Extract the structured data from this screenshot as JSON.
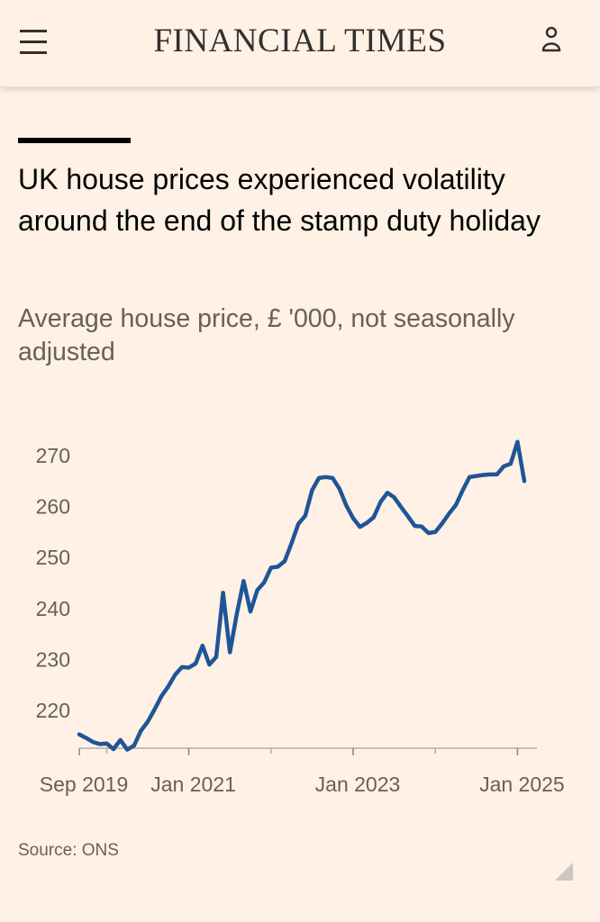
{
  "header": {
    "brand": "FINANCIAL TIMES",
    "menu_icon": "hamburger-menu-icon",
    "user_icon": "user-account-icon"
  },
  "article": {
    "headline": "UK house prices experienced volatility around the end of the stamp duty holiday",
    "subtitle": "Average house price, £ '000, not seasonally adjusted",
    "source": "Source: ONS"
  },
  "colors": {
    "background": "#fff1e5",
    "line": "#1f5597",
    "text": "#33302e",
    "muted": "#66605c",
    "accent_bar": "#000000"
  },
  "chart_data": {
    "type": "line",
    "title": "UK house prices experienced volatility around the end of the stamp duty holiday",
    "subtitle": "Average house price, £ '000, not seasonally adjusted",
    "ylabel": "",
    "xlabel": "",
    "ylim": [
      210,
      275
    ],
    "yticks": [
      220,
      230,
      240,
      250,
      260,
      270
    ],
    "xticks": [
      {
        "label": "Sep 2019",
        "date": "2019-09"
      },
      {
        "label": "Jan 2021",
        "date": "2021-01"
      },
      {
        "label": "Jan 2023",
        "date": "2023-01"
      },
      {
        "label": "Jan 2025",
        "date": "2025-01"
      }
    ],
    "grid": false,
    "series": [
      {
        "x": [
          "2019-09",
          "2019-10",
          "2019-11",
          "2019-12",
          "2020-01",
          "2020-02",
          "2020-03",
          "2020-04",
          "2020-05",
          "2020-06",
          "2020-07",
          "2020-08",
          "2020-09",
          "2020-10",
          "2020-11",
          "2020-12",
          "2021-01",
          "2021-02",
          "2021-03",
          "2021-04",
          "2021-05",
          "2021-06",
          "2021-07",
          "2021-08",
          "2021-09",
          "2021-10",
          "2021-11",
          "2021-12",
          "2022-01",
          "2022-02",
          "2022-03",
          "2022-04",
          "2022-05",
          "2022-06",
          "2022-07",
          "2022-08",
          "2022-09",
          "2022-10",
          "2022-11",
          "2022-12",
          "2023-01",
          "2023-02",
          "2023-03",
          "2023-04",
          "2023-05",
          "2023-06",
          "2023-07",
          "2023-08",
          "2023-09",
          "2023-10",
          "2023-11",
          "2023-12",
          "2024-01",
          "2024-02",
          "2024-03",
          "2024-04",
          "2024-05",
          "2024-06",
          "2024-07",
          "2024-08",
          "2024-09",
          "2024-10",
          "2024-11",
          "2024-12",
          "2025-01",
          "2025-02"
        ],
        "values": [
          215.3,
          214.6,
          213.8,
          213.4,
          213.5,
          212.4,
          214.2,
          212.3,
          213.1,
          216.0,
          217.8,
          220.2,
          222.8,
          224.7,
          227.0,
          228.5,
          228.4,
          229.2,
          232.7,
          229.0,
          230.5,
          243.1,
          231.4,
          238.9,
          245.4,
          239.4,
          243.6,
          245.1,
          248.0,
          248.2,
          249.3,
          252.8,
          256.6,
          258.2,
          263.2,
          265.6,
          265.8,
          265.6,
          263.5,
          260.2,
          257.7,
          256.0,
          256.8,
          257.9,
          260.9,
          262.7,
          261.8,
          259.9,
          258.1,
          256.2,
          256.1,
          254.8,
          255.0,
          256.7,
          258.6,
          260.3,
          263.2,
          265.8,
          266.0,
          266.2,
          266.3,
          266.3,
          267.9,
          268.4,
          272.7,
          265.0
        ]
      }
    ]
  }
}
